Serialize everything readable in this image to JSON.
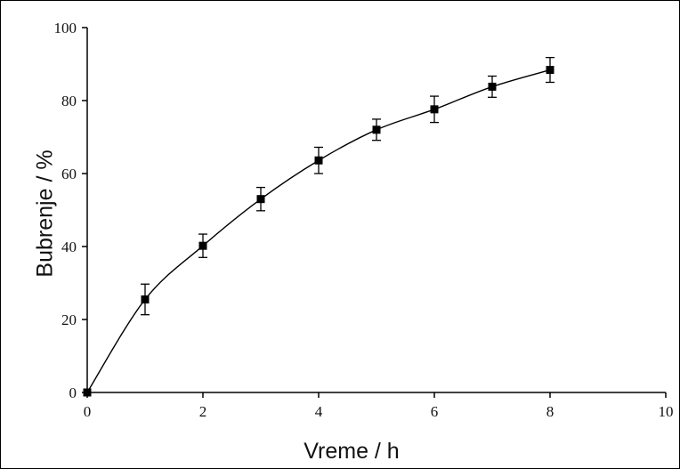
{
  "chart_data": {
    "type": "line",
    "title": "",
    "xlabel": "Vreme / h",
    "ylabel": "Bubrenje / %",
    "xlim": [
      0,
      10
    ],
    "ylim": [
      0,
      100
    ],
    "xticks": [
      "0",
      "2",
      "4",
      "6",
      "8",
      "10"
    ],
    "yticks": [
      "0",
      "20",
      "40",
      "60",
      "80",
      "100"
    ],
    "grid": false,
    "legend": "none",
    "series": [
      {
        "color": "#000000",
        "marker": "square",
        "x": [
          0,
          1,
          2,
          3,
          4,
          5,
          6,
          7,
          8
        ],
        "y": [
          0,
          25.5,
          40.2,
          53.0,
          63.6,
          72.0,
          77.6,
          83.8,
          88.4
        ],
        "error": [
          0,
          4.2,
          3.2,
          3.2,
          3.6,
          2.9,
          3.6,
          2.9,
          3.4
        ]
      }
    ]
  }
}
